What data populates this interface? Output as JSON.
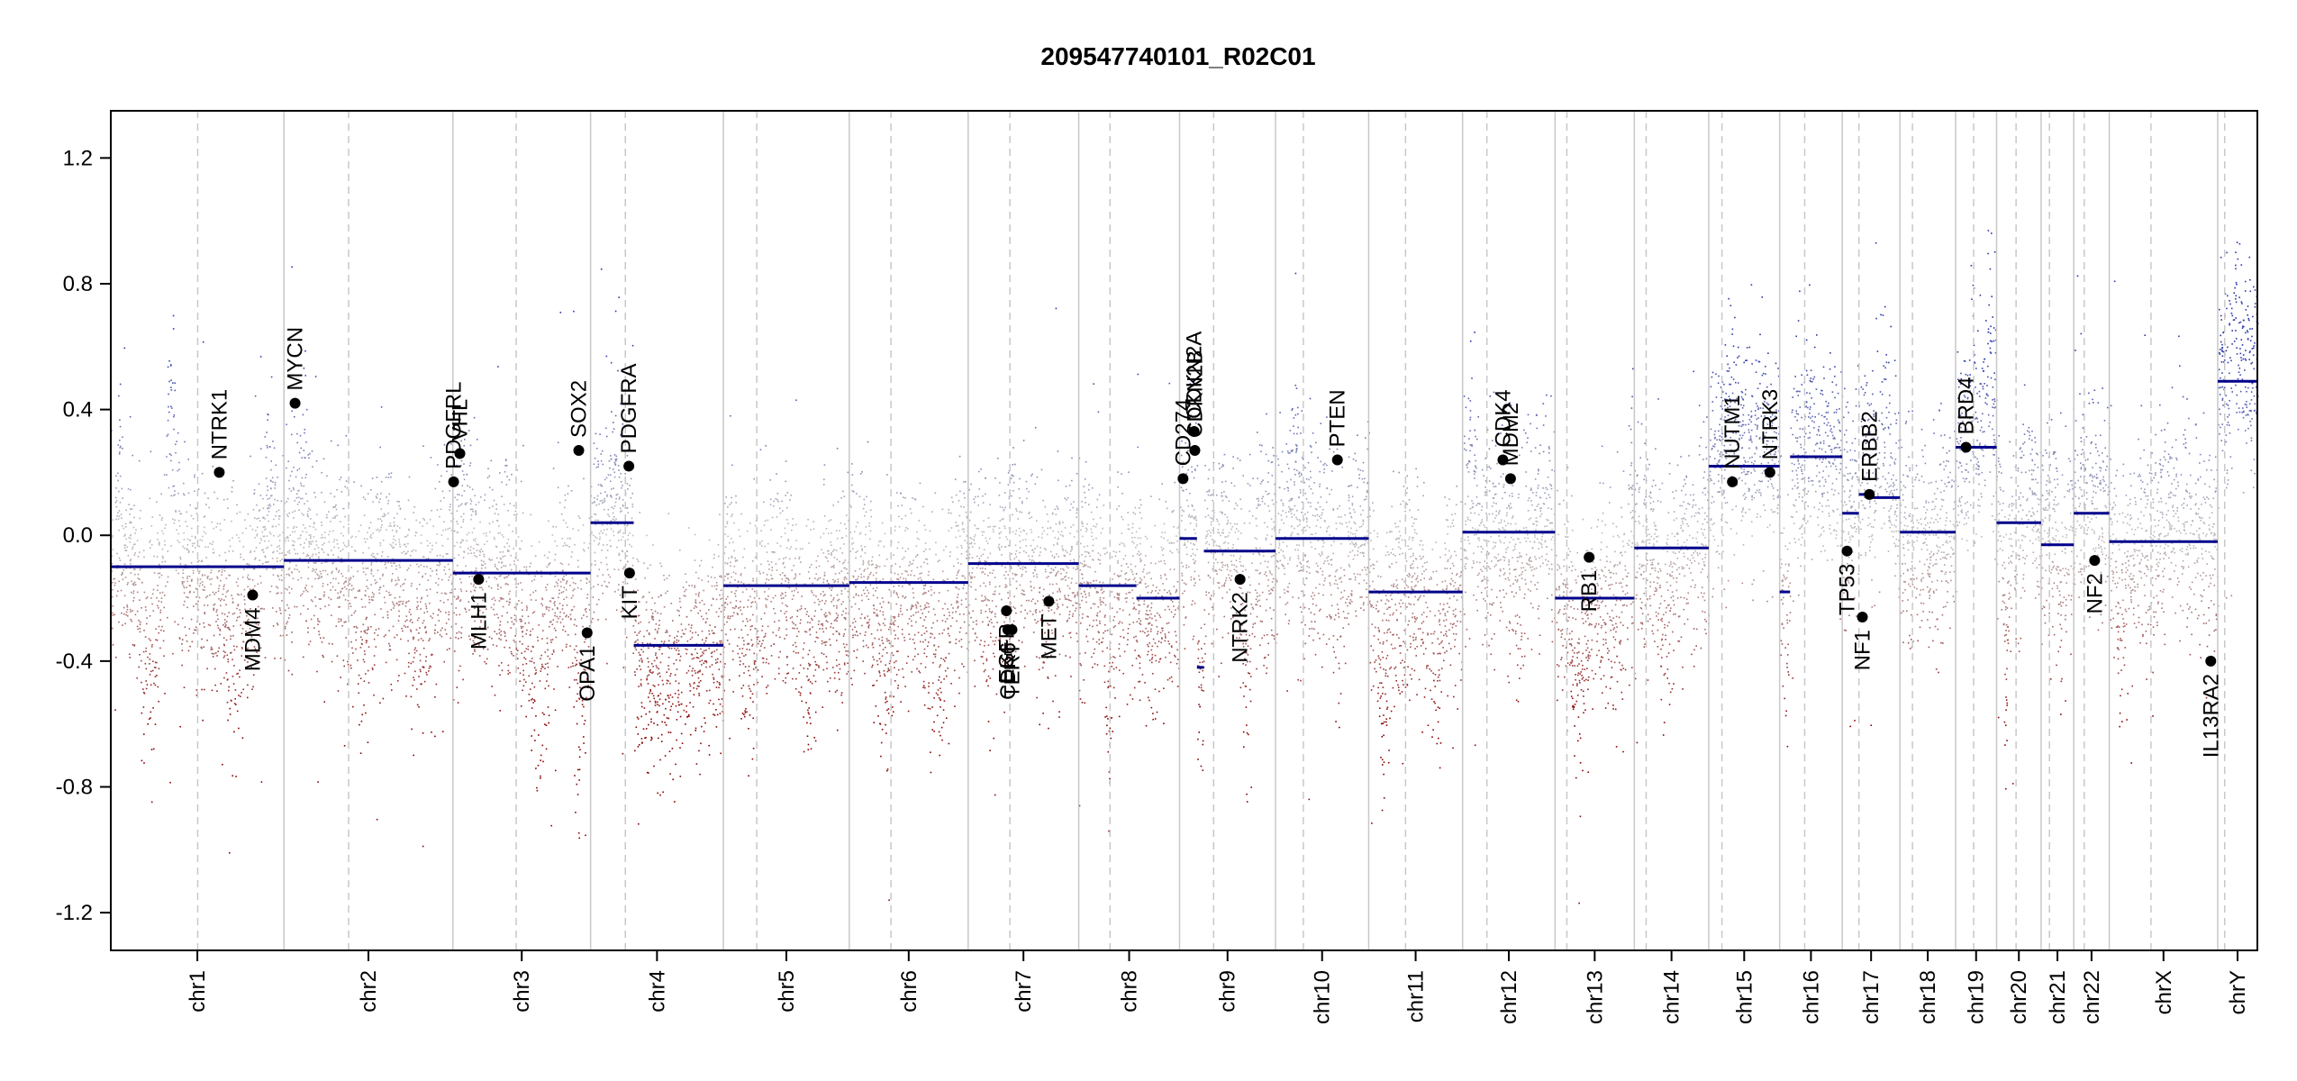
{
  "chart_data": {
    "type": "scatter",
    "title": "209547740101_R02C01",
    "xlabel": "",
    "ylabel": "",
    "ylim": [
      -1.32,
      1.35
    ],
    "y_ticks": [
      -1.2,
      -0.8,
      -0.4,
      0.0,
      0.4,
      0.8,
      1.2
    ],
    "y_tick_labels": [
      "-1.2",
      "-0.8",
      "-0.4",
      "0.0",
      "0.4",
      "0.8",
      "1.2"
    ],
    "grid": false,
    "colors": {
      "gain": "#2b3a9e",
      "loss": "#8b0000",
      "neutral": "#bdbdbd",
      "segment": "#00008b",
      "separator": "#c8c8c8"
    },
    "chromosomes": [
      {
        "name": "chr1",
        "len": 249,
        "cent": 125,
        "segments": [
          {
            "s": 0,
            "e": 249,
            "v": -0.1
          }
        ],
        "clusters": [
          {
            "p": 0.05,
            "w": 0.02,
            "v": 0.2
          },
          {
            "p": 0.22,
            "w": 0.06,
            "v": -0.45
          },
          {
            "p": 0.35,
            "w": 0.03,
            "v": 0.55
          },
          {
            "p": 0.7,
            "w": 0.1,
            "v": -0.4
          },
          {
            "p": 0.9,
            "w": 0.05,
            "v": 0.1
          }
        ]
      },
      {
        "name": "chr2",
        "len": 243,
        "cent": 93,
        "segments": [
          {
            "s": 0,
            "e": 243,
            "v": -0.08
          }
        ],
        "clusters": [
          {
            "p": 0.1,
            "w": 0.05,
            "v": 0.15
          },
          {
            "p": 0.45,
            "w": 0.08,
            "v": -0.3
          },
          {
            "p": 0.8,
            "w": 0.08,
            "v": -0.35
          }
        ]
      },
      {
        "name": "chr3",
        "len": 198,
        "cent": 91,
        "segments": [
          {
            "s": 0,
            "e": 198,
            "v": -0.12
          }
        ],
        "clusters": [
          {
            "p": 0.1,
            "w": 0.04,
            "v": 0.2
          },
          {
            "p": 0.6,
            "w": 0.12,
            "v": -0.55
          },
          {
            "p": 0.92,
            "w": 0.05,
            "v": -0.7
          }
        ]
      },
      {
        "name": "chr4",
        "len": 191,
        "cent": 50,
        "segments": [
          {
            "s": 0,
            "e": 62,
            "v": 0.04
          },
          {
            "s": 62,
            "e": 191,
            "v": -0.35
          }
        ],
        "clusters": [
          {
            "p": 0.15,
            "w": 0.05,
            "v": 0.2
          },
          {
            "p": 0.55,
            "w": 0.15,
            "v": -0.5
          }
        ]
      },
      {
        "name": "chr5",
        "len": 181,
        "cent": 48,
        "segments": [
          {
            "s": 0,
            "e": 181,
            "v": -0.16
          }
        ],
        "clusters": [
          {
            "p": 0.2,
            "w": 0.08,
            "v": -0.45
          },
          {
            "p": 0.65,
            "w": 0.1,
            "v": -0.5
          }
        ]
      },
      {
        "name": "chr6",
        "len": 171,
        "cent": 60,
        "segments": [
          {
            "s": 0,
            "e": 171,
            "v": -0.15
          }
        ],
        "clusters": [
          {
            "p": 0.3,
            "w": 0.08,
            "v": -0.45
          },
          {
            "p": 0.75,
            "w": 0.1,
            "v": -0.5
          }
        ]
      },
      {
        "name": "chr7",
        "len": 159,
        "cent": 60,
        "segments": [
          {
            "s": 0,
            "e": 159,
            "v": -0.09
          }
        ],
        "clusters": [
          {
            "p": 0.2,
            "w": 0.06,
            "v": -0.35
          },
          {
            "p": 0.7,
            "w": 0.06,
            "v": -0.3
          }
        ]
      },
      {
        "name": "chr8",
        "len": 145,
        "cent": 45,
        "segments": [
          {
            "s": 0,
            "e": 83,
            "v": -0.16
          },
          {
            "s": 83,
            "e": 145,
            "v": -0.2
          }
        ],
        "clusters": [
          {
            "p": 0.3,
            "w": 0.05,
            "v": -0.6
          },
          {
            "p": 0.75,
            "w": 0.06,
            "v": -0.35
          }
        ]
      },
      {
        "name": "chr9",
        "len": 138,
        "cent": 49,
        "segments": [
          {
            "s": 0,
            "e": 25,
            "v": -0.01
          },
          {
            "s": 25,
            "e": 35,
            "v": -0.42
          },
          {
            "s": 35,
            "e": 138,
            "v": -0.05
          }
        ],
        "clusters": [
          {
            "p": 0.1,
            "w": 0.03,
            "v": 0.3
          },
          {
            "p": 0.7,
            "w": 0.06,
            "v": -0.5
          }
        ]
      },
      {
        "name": "chr10",
        "len": 134,
        "cent": 40,
        "segments": [
          {
            "s": 0,
            "e": 134,
            "v": -0.01
          }
        ],
        "clusters": [
          {
            "p": 0.2,
            "w": 0.05,
            "v": 0.25
          },
          {
            "p": 0.7,
            "w": 0.08,
            "v": -0.3
          }
        ]
      },
      {
        "name": "chr11",
        "len": 135,
        "cent": 53,
        "segments": [
          {
            "s": 0,
            "e": 135,
            "v": -0.18
          }
        ],
        "clusters": [
          {
            "p": 0.15,
            "w": 0.05,
            "v": -0.6
          },
          {
            "p": 0.7,
            "w": 0.08,
            "v": -0.5
          }
        ]
      },
      {
        "name": "chr12",
        "len": 133,
        "cent": 35,
        "segments": [
          {
            "s": 0,
            "e": 133,
            "v": 0.01
          }
        ],
        "clusters": [
          {
            "p": 0.1,
            "w": 0.04,
            "v": 0.35
          },
          {
            "p": 0.6,
            "w": 0.08,
            "v": -0.2
          }
        ]
      },
      {
        "name": "chr13",
        "len": 114,
        "cent": 17,
        "segments": [
          {
            "s": 0,
            "e": 114,
            "v": -0.2
          }
        ],
        "clusters": [
          {
            "p": 0.3,
            "w": 0.1,
            "v": -0.6
          },
          {
            "p": 0.95,
            "w": 0.03,
            "v": 0.3
          }
        ]
      },
      {
        "name": "chr14",
        "len": 107,
        "cent": 17,
        "segments": [
          {
            "s": 0,
            "e": 107,
            "v": -0.04
          }
        ],
        "clusters": [
          {
            "p": 0.4,
            "w": 0.1,
            "v": -0.35
          }
        ]
      },
      {
        "name": "chr15",
        "len": 102,
        "cent": 19,
        "segments": [
          {
            "s": 0,
            "e": 102,
            "v": 0.22
          }
        ],
        "clusters": [
          {
            "p": 0.3,
            "w": 0.1,
            "v": 0.5
          },
          {
            "p": 0.75,
            "w": 0.1,
            "v": 0.4
          }
        ]
      },
      {
        "name": "chr16",
        "len": 90,
        "cent": 36,
        "segments": [
          {
            "s": 0,
            "e": 15,
            "v": -0.18
          },
          {
            "s": 15,
            "e": 90,
            "v": 0.25
          }
        ],
        "clusters": [
          {
            "p": 0.5,
            "w": 0.1,
            "v": 0.35
          },
          {
            "p": 0.1,
            "w": 0.03,
            "v": -0.45
          }
        ]
      },
      {
        "name": "chr17",
        "len": 83,
        "cent": 24,
        "segments": [
          {
            "s": 0,
            "e": 24,
            "v": 0.07
          },
          {
            "s": 24,
            "e": 40,
            "v": 0.13
          },
          {
            "s": 40,
            "e": 83,
            "v": 0.12
          }
        ],
        "clusters": [
          {
            "p": 0.3,
            "w": 0.1,
            "v": 0.3
          },
          {
            "p": 0.7,
            "w": 0.1,
            "v": 0.45
          }
        ]
      },
      {
        "name": "chr18",
        "len": 80,
        "cent": 18,
        "segments": [
          {
            "s": 0,
            "e": 80,
            "v": 0.01
          }
        ],
        "clusters": [
          {
            "p": 0.5,
            "w": 0.12,
            "v": -0.1
          }
        ]
      },
      {
        "name": "chr19",
        "len": 59,
        "cent": 26,
        "segments": [
          {
            "s": 0,
            "e": 59,
            "v": 0.28
          }
        ],
        "clusters": [
          {
            "p": 0.4,
            "w": 0.1,
            "v": 0.5
          },
          {
            "p": 0.8,
            "w": 0.1,
            "v": 0.6
          }
        ]
      },
      {
        "name": "chr20",
        "len": 64,
        "cent": 28,
        "segments": [
          {
            "s": 0,
            "e": 64,
            "v": 0.04
          }
        ],
        "clusters": [
          {
            "p": 0.2,
            "w": 0.06,
            "v": -0.55
          },
          {
            "p": 0.7,
            "w": 0.1,
            "v": 0.2
          }
        ]
      },
      {
        "name": "chr21",
        "len": 47,
        "cent": 12,
        "segments": [
          {
            "s": 0,
            "e": 47,
            "v": -0.03
          }
        ],
        "clusters": [
          {
            "p": 0.6,
            "w": 0.1,
            "v": -0.2
          }
        ]
      },
      {
        "name": "chr22",
        "len": 51,
        "cent": 15,
        "segments": [
          {
            "s": 0,
            "e": 51,
            "v": 0.07
          }
        ],
        "clusters": [
          {
            "p": 0.5,
            "w": 0.1,
            "v": 0.1
          }
        ]
      },
      {
        "name": "chrX",
        "len": 156,
        "cent": 60,
        "segments": [
          {
            "s": 0,
            "e": 156,
            "v": -0.02
          }
        ],
        "clusters": [
          {
            "p": 0.1,
            "w": 0.05,
            "v": -0.35
          },
          {
            "p": 0.6,
            "w": 0.1,
            "v": 0.15
          }
        ]
      },
      {
        "name": "chrY",
        "len": 57,
        "cent": 10,
        "segments": [
          {
            "s": 0,
            "e": 57,
            "v": 0.49
          }
        ],
        "clusters": [
          {
            "p": 0.5,
            "w": 0.2,
            "v": 0.7
          }
        ]
      }
    ],
    "genes": [
      {
        "name": "NTRK1",
        "chr": "chr1",
        "pos": 156,
        "v": 0.2,
        "label": "above"
      },
      {
        "name": "MDM4",
        "chr": "chr1",
        "pos": 204,
        "v": -0.19,
        "label": "below"
      },
      {
        "name": "MYCN",
        "chr": "chr2",
        "pos": 16,
        "v": 0.42,
        "label": "above"
      },
      {
        "name": "PDGFRL",
        "chr": "chr3",
        "pos": 1,
        "v": 0.17,
        "label": "above"
      },
      {
        "name": "VHL",
        "chr": "chr3",
        "pos": 10,
        "v": 0.26,
        "label": "above"
      },
      {
        "name": "MLH1",
        "chr": "chr3",
        "pos": 37,
        "v": -0.14,
        "label": "below"
      },
      {
        "name": "SOX2",
        "chr": "chr3",
        "pos": 181,
        "v": 0.27,
        "label": "above"
      },
      {
        "name": "OPA1",
        "chr": "chr3",
        "pos": 193,
        "v": -0.31,
        "label": "below"
      },
      {
        "name": "PDGFRA",
        "chr": "chr4",
        "pos": 55,
        "v": 0.22,
        "label": "above"
      },
      {
        "name": "KIT",
        "chr": "chr4",
        "pos": 56,
        "v": -0.12,
        "label": "below"
      },
      {
        "name": "EGFR",
        "chr": "chr7",
        "pos": 55,
        "v": -0.24,
        "label": "below"
      },
      {
        "name": "CDK6",
        "chr": "chr7",
        "pos": 57,
        "v": -0.3,
        "label": "below"
      },
      {
        "name": "TERT",
        "chr": "chr7",
        "pos": 63,
        "v": -0.3,
        "label": "below"
      },
      {
        "name": "MET",
        "chr": "chr7",
        "pos": 116,
        "v": -0.21,
        "label": "below"
      },
      {
        "name": "CD274",
        "chr": "chr9",
        "pos": 5,
        "v": 0.18,
        "label": "above"
      },
      {
        "name": "CDKN2A",
        "chr": "chr9",
        "pos": 21,
        "v": 0.33,
        "label": "above"
      },
      {
        "name": "CDKN2B",
        "chr": "chr9",
        "pos": 22,
        "v": 0.27,
        "label": "above"
      },
      {
        "name": "NTRK2",
        "chr": "chr9",
        "pos": 87,
        "v": -0.14,
        "label": "below"
      },
      {
        "name": "PTEN",
        "chr": "chr10",
        "pos": 89,
        "v": 0.24,
        "label": "above"
      },
      {
        "name": "CDK4",
        "chr": "chr12",
        "pos": 58,
        "v": 0.24,
        "label": "above"
      },
      {
        "name": "MDM2",
        "chr": "chr12",
        "pos": 69,
        "v": 0.18,
        "label": "above"
      },
      {
        "name": "RB1",
        "chr": "chr13",
        "pos": 49,
        "v": -0.07,
        "label": "below"
      },
      {
        "name": "NUTM1",
        "chr": "chr15",
        "pos": 34,
        "v": 0.17,
        "label": "above"
      },
      {
        "name": "NTRK3",
        "chr": "chr15",
        "pos": 88,
        "v": 0.2,
        "label": "above"
      },
      {
        "name": "TP53",
        "chr": "chr17",
        "pos": 7,
        "v": -0.05,
        "label": "below"
      },
      {
        "name": "NF1",
        "chr": "chr17",
        "pos": 29,
        "v": -0.26,
        "label": "below"
      },
      {
        "name": "ERBB2",
        "chr": "chr17",
        "pos": 39,
        "v": 0.13,
        "label": "above"
      },
      {
        "name": "BRD4",
        "chr": "chr19",
        "pos": 15,
        "v": 0.28,
        "label": "above"
      },
      {
        "name": "NF2",
        "chr": "chr22",
        "pos": 30,
        "v": -0.08,
        "label": "below"
      },
      {
        "name": "IL13RA2",
        "chr": "chrX",
        "pos": 146,
        "v": -0.4,
        "label": "below"
      }
    ]
  }
}
